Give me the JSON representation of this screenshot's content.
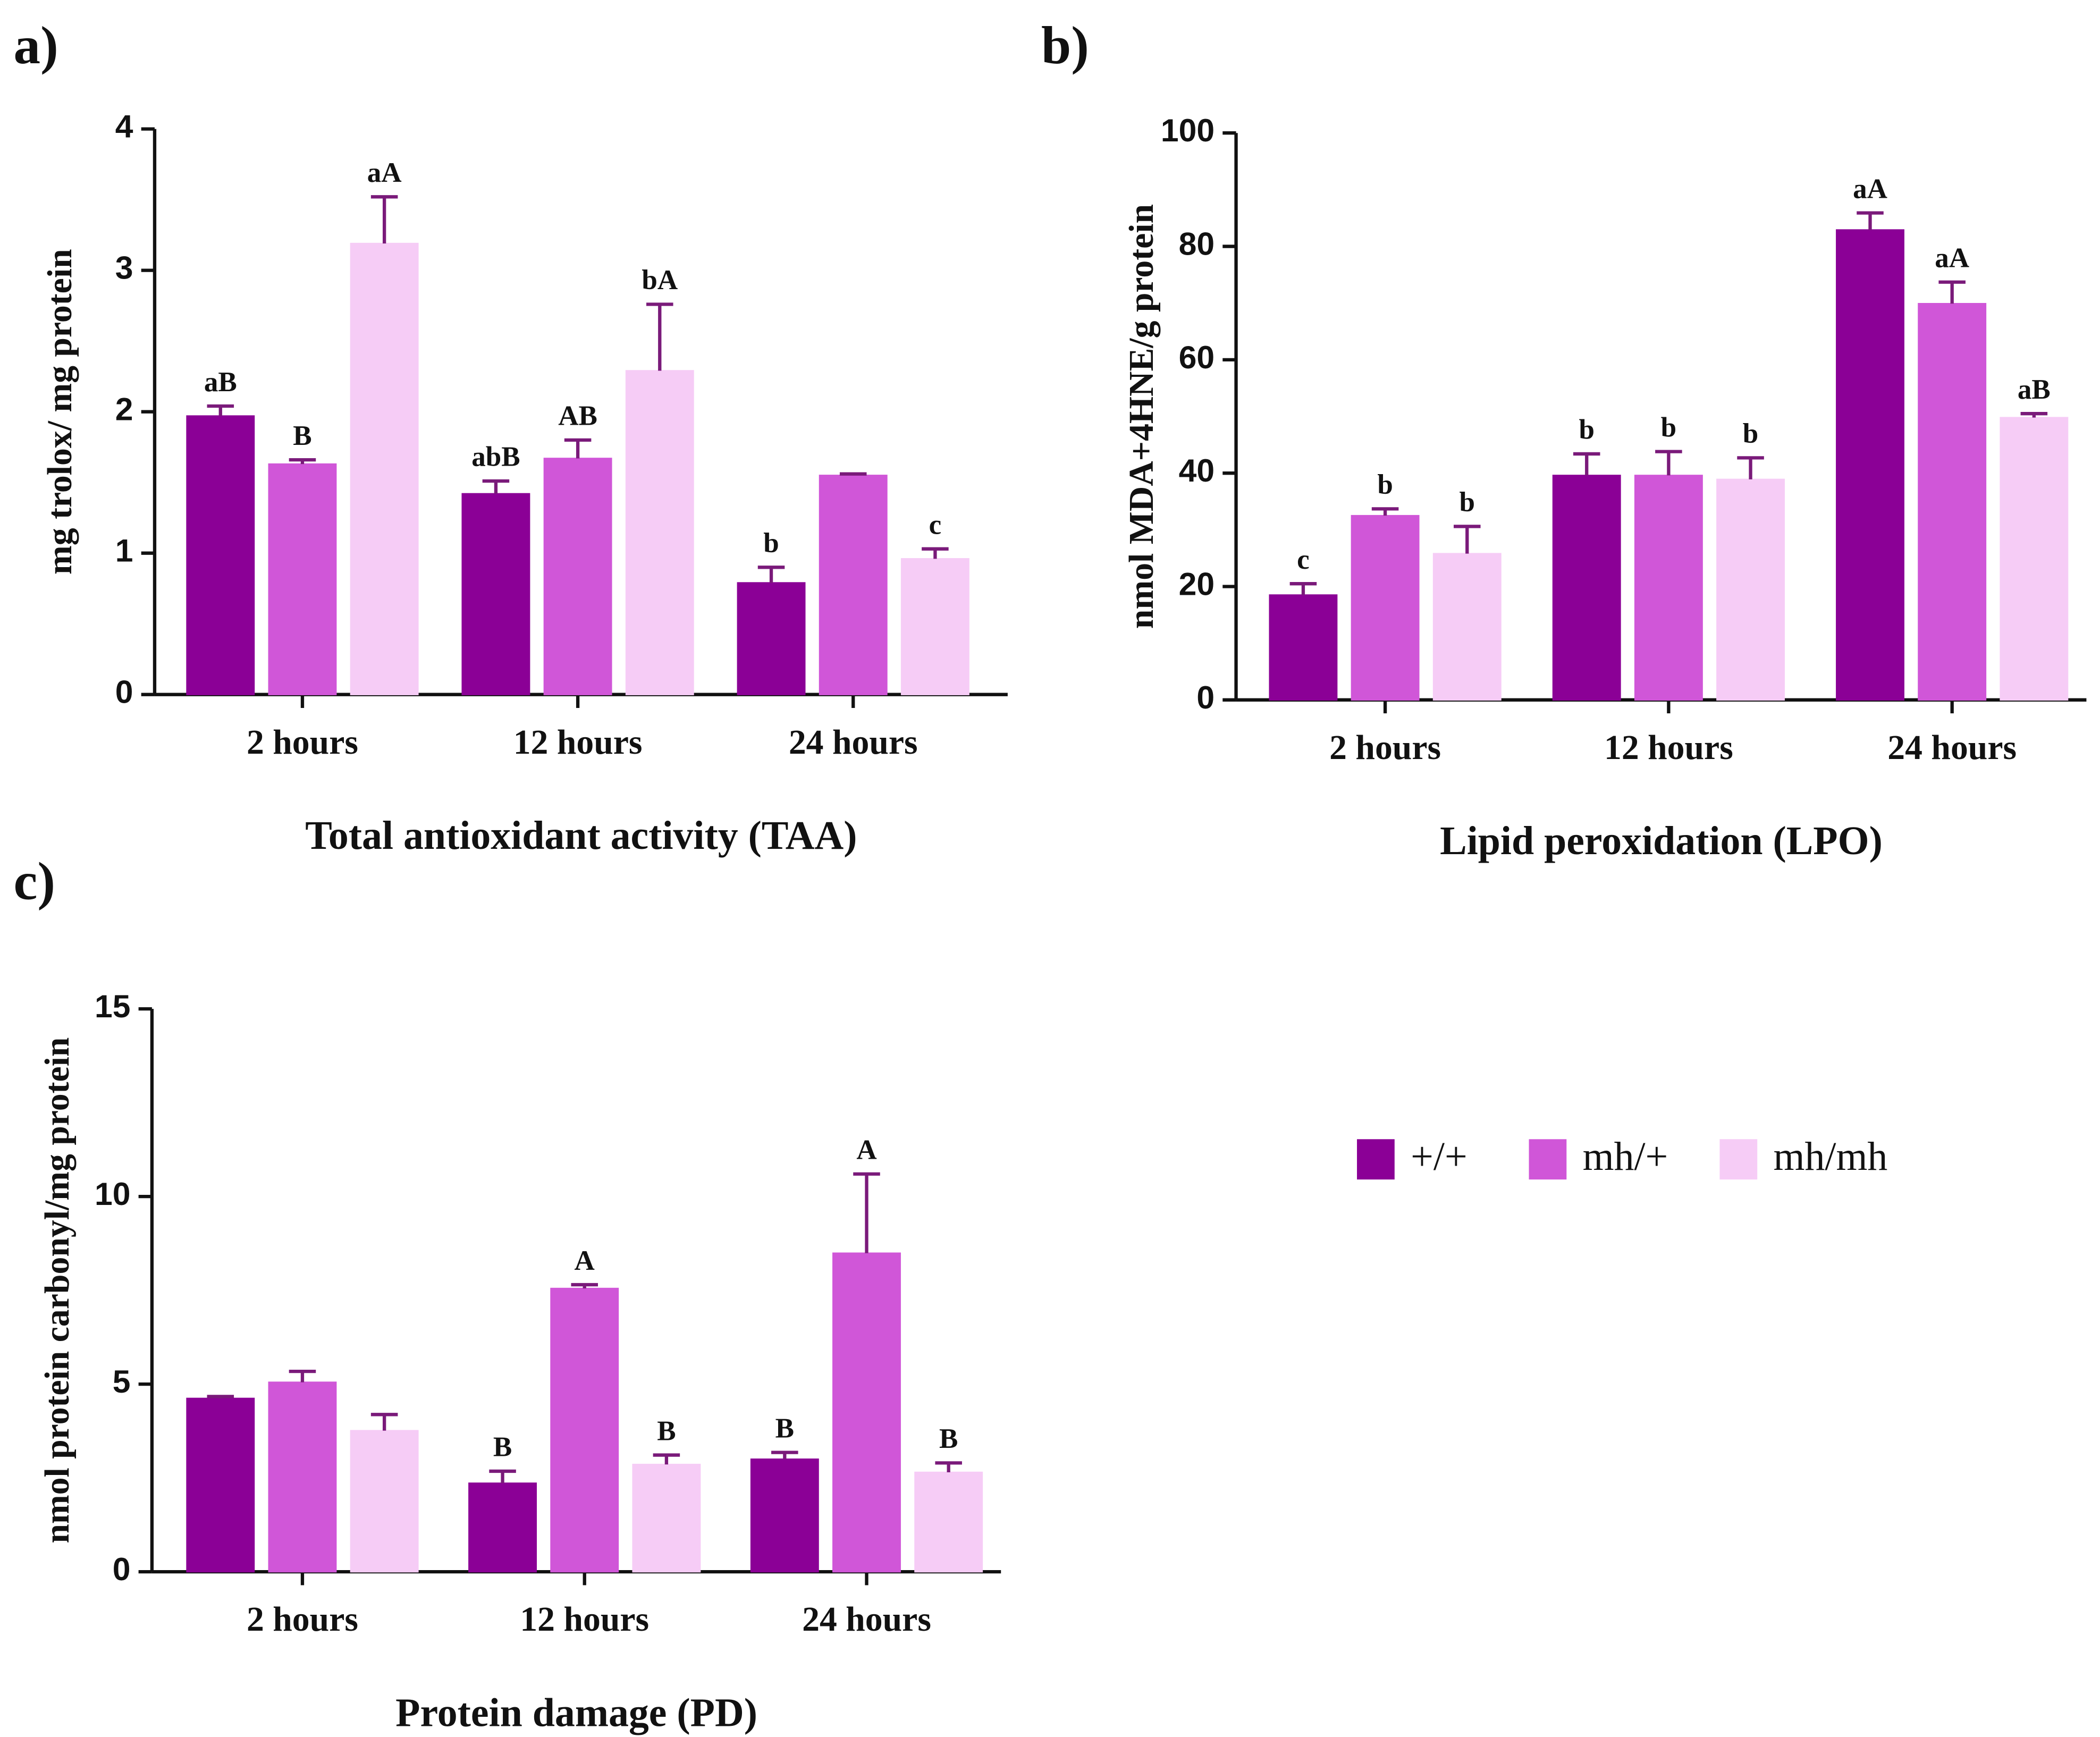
{
  "legend": [
    {
      "name": "+/+",
      "color": "#8b0096"
    },
    {
      "name": "mh/+",
      "color": "#d056d8"
    },
    {
      "name": "mh/mh",
      "color": "#f6ccf6"
    }
  ],
  "chart_data": [
    {
      "type": "bar",
      "panel": "a)",
      "title": "Total antioxidant activity (TAA)",
      "ylabel": "mg trolox/ mg protein",
      "categories": [
        "2 hours",
        "12 hours",
        "24 hours"
      ],
      "ylim": [
        0,
        4
      ],
      "yticks": [
        0,
        1,
        2,
        3,
        4
      ],
      "series": [
        {
          "values": [
            1.97,
            1.42,
            0.79
          ],
          "errors": [
            0.07,
            0.09,
            0.11
          ],
          "labels": [
            "aB",
            "abB",
            "b"
          ]
        },
        {
          "values": [
            1.63,
            1.67,
            1.55
          ],
          "errors": [
            0.03,
            0.13,
            0.01
          ],
          "labels": [
            "B",
            "AB",
            null
          ]
        },
        {
          "values": [
            3.19,
            2.29,
            0.96
          ],
          "errors": [
            0.33,
            0.47,
            0.07
          ],
          "labels": [
            "aA",
            "bA",
            "c"
          ]
        }
      ]
    },
    {
      "type": "bar",
      "panel": "b)",
      "title": "Lipid peroxidation (LPO)",
      "ylabel": "nmol MDA+4HNE/g protein",
      "categories": [
        "2 hours",
        "12 hours",
        "24 hours"
      ],
      "ylim": [
        0,
        100
      ],
      "yticks": [
        0,
        20,
        40,
        60,
        80,
        100
      ],
      "series": [
        {
          "values": [
            18.5,
            39.6,
            82.9
          ],
          "errors": [
            2,
            3.8,
            3
          ],
          "labels": [
            "c",
            "b",
            "aA"
          ]
        },
        {
          "values": [
            32.5,
            39.6,
            69.9
          ],
          "errors": [
            1.2,
            4.2,
            3.8
          ],
          "labels": [
            "b",
            "b",
            "aA"
          ]
        },
        {
          "values": [
            25.8,
            38.9,
            49.8
          ],
          "errors": [
            4.8,
            3.8,
            0.7
          ],
          "labels": [
            "b",
            "b",
            "aB"
          ]
        }
      ]
    },
    {
      "type": "bar",
      "panel": "c)",
      "title": "Protein damage (PD)",
      "ylabel": "nmol protein carbonyl/mg protein",
      "categories": [
        "2 hours",
        "12 hours",
        "24 hours"
      ],
      "ylim": [
        0,
        15
      ],
      "yticks": [
        0,
        5,
        10,
        15
      ],
      "series": [
        {
          "values": [
            4.62,
            2.36,
            3.0
          ],
          "errors": [
            0.05,
            0.32,
            0.18
          ],
          "labels": [
            null,
            "B",
            "B"
          ]
        },
        {
          "values": [
            5.05,
            7.55,
            8.49
          ],
          "errors": [
            0.29,
            0.1,
            2.11
          ],
          "labels": [
            null,
            "A",
            "A"
          ]
        },
        {
          "values": [
            3.76,
            2.86,
            2.65
          ],
          "errors": [
            0.43,
            0.25,
            0.25
          ],
          "labels": [
            null,
            "B",
            "B"
          ]
        }
      ]
    }
  ]
}
